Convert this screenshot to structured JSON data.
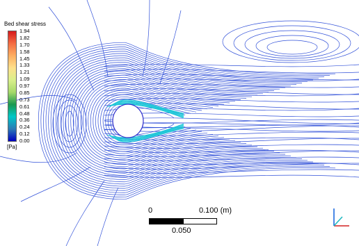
{
  "chart_data": {
    "type": "contour",
    "legend_title": "Bed shear stress",
    "unit": "[Pa]",
    "colorbar": {
      "min": 0.0,
      "max": 1.94,
      "ticks": [
        "1.94",
        "1.82",
        "1.70",
        "1.58",
        "1.45",
        "1.33",
        "1.21",
        "1.09",
        "0.97",
        "0.85",
        "0.73",
        "0.61",
        "0.48",
        "0.36",
        "0.24",
        "0.12",
        "0.00"
      ],
      "colors": [
        "#d7191c",
        "#f46d43",
        "#fdae61",
        "#fee08b",
        "#d9ef8b",
        "#a6d96a",
        "#1a9850",
        "#00c8c8",
        "#2c7bb6",
        "#0000c0"
      ]
    },
    "scale_bar": {
      "left_label": "0",
      "right_label": "0.100  (m)",
      "mid_label": "0.050"
    },
    "contour_color": "#2f4fd8",
    "high_stress_color": "#1ec8d8"
  }
}
